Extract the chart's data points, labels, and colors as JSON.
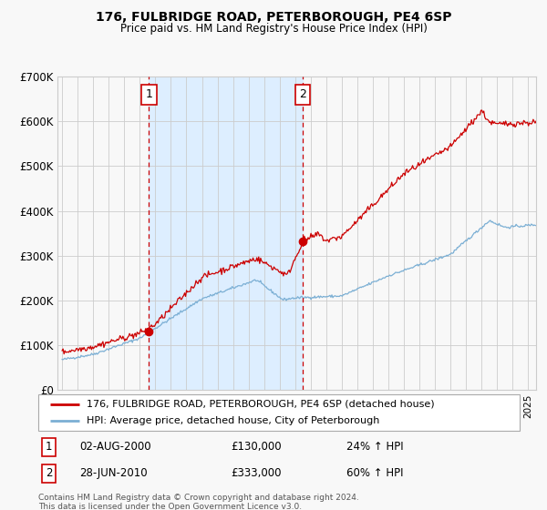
{
  "title": "176, FULBRIDGE ROAD, PETERBOROUGH, PE4 6SP",
  "subtitle": "Price paid vs. HM Land Registry's House Price Index (HPI)",
  "legend_line1": "176, FULBRIDGE ROAD, PETERBOROUGH, PE4 6SP (detached house)",
  "legend_line2": "HPI: Average price, detached house, City of Peterborough",
  "footnote": "Contains HM Land Registry data © Crown copyright and database right 2024.\nThis data is licensed under the Open Government Licence v3.0.",
  "transaction1_date": "02-AUG-2000",
  "transaction1_price": "£130,000",
  "transaction1_hpi": "24% ↑ HPI",
  "transaction2_date": "28-JUN-2010",
  "transaction2_price": "£333,000",
  "transaction2_hpi": "60% ↑ HPI",
  "sale1_year": 2000.58,
  "sale1_price": 130000,
  "sale2_year": 2010.49,
  "sale2_price": 333000,
  "hpi_color": "#7bafd4",
  "price_color": "#cc0000",
  "shade_color": "#ddeeff",
  "marker_color": "#cc0000",
  "grid_color": "#cccccc",
  "bg_color": "#f8f8f8",
  "ylim": [
    0,
    700000
  ],
  "xlim_start": 1994.7,
  "xlim_end": 2025.5
}
